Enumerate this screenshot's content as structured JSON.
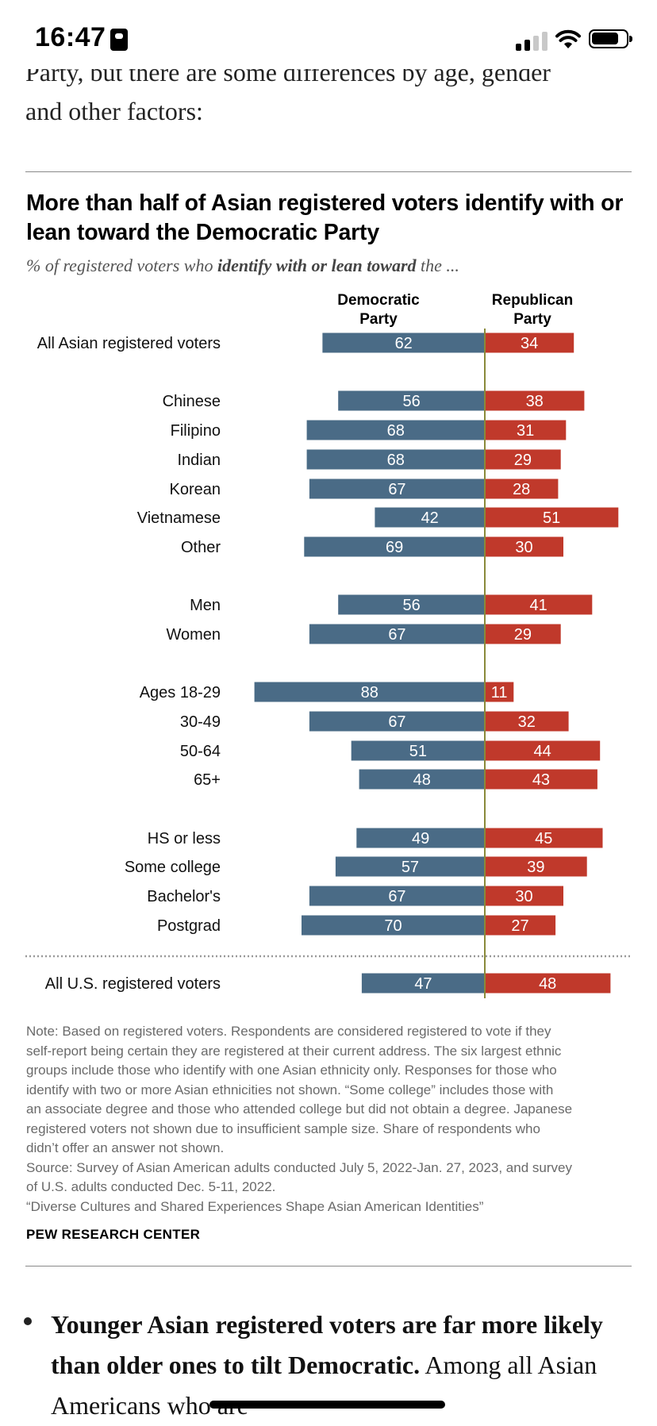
{
  "status_bar": {
    "time": "16:47"
  },
  "article": {
    "intro_cut": "Party, but there are some differences by age, gender",
    "intro_line2": "and other factors:",
    "bullet_bold": "Younger Asian registered voters are far more likely than older ones to tilt Democratic.",
    "bullet_rest": " Among all Asian Americans who are"
  },
  "chart": {
    "title": "More than half of Asian registered voters identify with or lean toward the Democratic Party",
    "subtitle_pre": "% of registered voters who ",
    "subtitle_bold": "identify with or lean toward",
    "subtitle_post": " the ...",
    "dem_header_line1": "Democratic",
    "dem_header_line2": "Party",
    "rep_header_line1": "Republican",
    "rep_header_line2": "Party",
    "note_lines": [
      "Note: Based on registered voters. Respondents are considered registered to vote if they",
      "self-report being certain they are registered at their current address. The six largest ethnic",
      "groups include those who identify with one Asian ethnicity only. Responses for those who",
      "identify with two or more Asian ethnicities not shown. “Some college” includes those with",
      "an associate degree and those who attended college but did not obtain a degree. Japanese",
      "registered voters not shown due to insufficient sample size. Share of respondents who",
      "didn’t offer an answer not shown.",
      "Source: Survey of Asian American adults conducted July 5, 2022-Jan. 27, 2023, and survey",
      "of U.S. adults conducted Dec. 5-11, 2022.",
      "“Diverse Cultures and Shared Experiences Shape Asian American Identities”"
    ],
    "source_org": "PEW RESEARCH CENTER"
  },
  "chart_data": {
    "type": "bar",
    "orientation": "horizontal-diverging",
    "title": "More than half of Asian registered voters identify with or lean toward the Democratic Party",
    "series_colors": {
      "Democratic Party": "#4a6b86",
      "Republican Party": "#c0392b"
    },
    "series": [
      {
        "name": "Democratic Party",
        "values": [
          62,
          56,
          68,
          68,
          67,
          42,
          69,
          56,
          67,
          88,
          67,
          51,
          48,
          49,
          57,
          67,
          70,
          47
        ]
      },
      {
        "name": "Republican Party",
        "values": [
          34,
          38,
          31,
          29,
          28,
          51,
          30,
          41,
          29,
          11,
          32,
          44,
          43,
          45,
          39,
          30,
          27,
          48
        ]
      }
    ],
    "categories": [
      "All Asian registered voters",
      "Chinese",
      "Filipino",
      "Indian",
      "Korean",
      "Vietnamese",
      "Other",
      "Men",
      "Women",
      "Ages 18-29",
      "30-49",
      "50-64",
      "65+",
      "HS or less",
      "Some college",
      "Bachelor's",
      "Postgrad",
      "All U.S. registered voters"
    ]
  }
}
